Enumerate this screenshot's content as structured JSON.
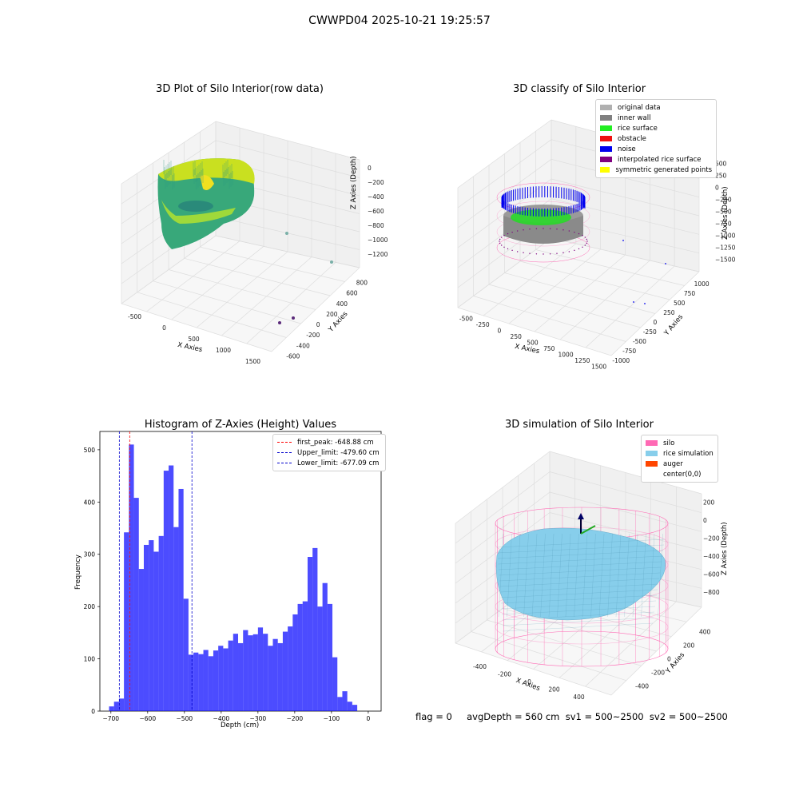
{
  "figure_title": "CWWPD04 2025-10-21 19:25:57",
  "status_line": "flag = 0     avgDepth = 560 cm  sv1 = 500~2500  sv2 = 500~2500",
  "panels": {
    "raw": {
      "title": "3D Plot of Silo Interior(row data)",
      "xlabel": "X Axies",
      "ylabel": "Y Axies",
      "zlabel": "Z Axies (Depth)",
      "xticks": [
        "-500",
        "0",
        "500",
        "1000",
        "1500"
      ],
      "yticks": [
        "-600",
        "-400",
        "-200",
        "0",
        "200",
        "400",
        "600",
        "800"
      ],
      "zticks": [
        "0",
        "−200",
        "−400",
        "−600",
        "−800",
        "−1000",
        "−1200"
      ]
    },
    "classify": {
      "title": "3D classify of Silo Interior",
      "xlabel": "X Axies",
      "ylabel": "Y Axies",
      "zlabel": "Z Axies (Depth)",
      "xticks": [
        "-500",
        "-250",
        "0",
        "250",
        "500",
        "750",
        "1000",
        "1250",
        "1500"
      ],
      "yticks": [
        "-1000",
        "-750",
        "-500",
        "-250",
        "0",
        "250",
        "500",
        "750",
        "1000"
      ],
      "zticks": [
        "500",
        "250",
        "0",
        "−250",
        "−500",
        "−750",
        "−1000",
        "−1250",
        "−1500"
      ],
      "legend": [
        {
          "label": "original data",
          "color": "#b0b0b0"
        },
        {
          "label": "inner wall",
          "color": "#808080"
        },
        {
          "label": "rice surface",
          "color": "#22ee22"
        },
        {
          "label": "obstacle",
          "color": "#ee1111"
        },
        {
          "label": "noise",
          "color": "#0000ee"
        },
        {
          "label": "interpolated rice surface",
          "color": "#800080"
        },
        {
          "label": "symmetric generated points",
          "color": "#ffff00"
        }
      ]
    },
    "simulation": {
      "title": "3D simulation of Silo Interior",
      "xlabel": "X Axies",
      "ylabel": "Y Axies",
      "zlabel": "Z Axies (Depth)",
      "xticks": [
        "-400",
        "-200",
        "0",
        "200",
        "400"
      ],
      "yticks": [
        "-400",
        "-200",
        "0",
        "200",
        "400"
      ],
      "zticks": [
        "200",
        "0",
        "−200",
        "−400",
        "−600",
        "−800"
      ],
      "legend": [
        {
          "label": "silo",
          "color": "#ff69b4"
        },
        {
          "label": "rice simulation",
          "color": "#87ceeb"
        },
        {
          "label": "auger",
          "color": "#ff4500"
        },
        {
          "label": "center(0,0)",
          "color": "#ffffff"
        }
      ]
    }
  },
  "chart_data": {
    "type": "bar",
    "title": "Histogram of Z-Axies (Height) Values",
    "xlabel": "Depth (cm)",
    "ylabel": "Frequency",
    "xlim": [
      -730,
      35
    ],
    "ylim": [
      0,
      535
    ],
    "xticks": [
      -700,
      -600,
      -500,
      -400,
      -300,
      -200,
      -100,
      0
    ],
    "xtick_labels": [
      "−700",
      "−600",
      "−500",
      "−400",
      "−300",
      "−200",
      "−100",
      "0"
    ],
    "yticks": [
      0,
      100,
      200,
      300,
      400,
      500
    ],
    "bar_color": "#0000ff",
    "bin_width": 13.5,
    "bin_starts": [
      -705,
      -691.5,
      -678,
      -664.5,
      -651,
      -637.5,
      -624,
      -610.5,
      -597,
      -583.5,
      -570,
      -556.5,
      -543,
      -529.5,
      -516,
      -502.5,
      -489,
      -475.5,
      -462,
      -448.5,
      -435,
      -421.5,
      -408,
      -394.5,
      -381,
      -367.5,
      -354,
      -340.5,
      -327,
      -313.5,
      -300,
      -286.5,
      -273,
      -259.5,
      -246,
      -232.5,
      -219,
      -205.5,
      -192,
      -178.5,
      -165,
      -151.5,
      -138,
      -124.5,
      -111,
      -97.5,
      -84,
      -70.5,
      -57,
      -43.5,
      -30,
      -16.5
    ],
    "values": [
      9,
      18,
      24,
      342,
      510,
      408,
      272,
      318,
      327,
      305,
      335,
      460,
      470,
      352,
      425,
      215,
      108,
      112,
      109,
      117,
      105,
      116,
      125,
      120,
      135,
      148,
      130,
      155,
      145,
      147,
      160,
      148,
      125,
      138,
      130,
      152,
      162,
      185,
      205,
      210,
      295,
      312,
      200,
      245,
      205,
      103,
      27,
      38,
      18,
      12,
      0,
      0
    ],
    "vlines": [
      {
        "label": "first_peak: -648.88 cm",
        "x": -648.88,
        "color": "#ff0000"
      },
      {
        "label": "Upper_limit: -479.60 cm",
        "x": -479.6,
        "color": "#0000cc"
      },
      {
        "label": "Lower_limit: -677.09 cm",
        "x": -677.09,
        "color": "#0000cc"
      }
    ]
  }
}
